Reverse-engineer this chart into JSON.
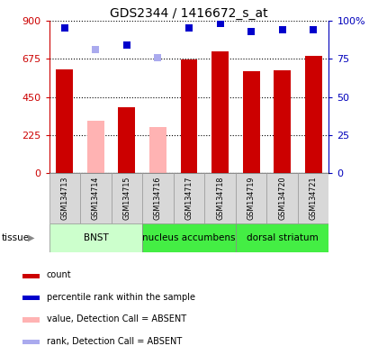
{
  "title": "GDS2344 / 1416672_s_at",
  "samples": [
    "GSM134713",
    "GSM134714",
    "GSM134715",
    "GSM134716",
    "GSM134717",
    "GSM134718",
    "GSM134719",
    "GSM134720",
    "GSM134721"
  ],
  "bar_values": [
    610,
    310,
    390,
    270,
    670,
    720,
    600,
    605,
    690
  ],
  "bar_colors": [
    "#cc0000",
    "#ffb3b3",
    "#cc0000",
    "#ffb3b3",
    "#cc0000",
    "#cc0000",
    "#cc0000",
    "#cc0000",
    "#cc0000"
  ],
  "rank_values": [
    95,
    81,
    84,
    76,
    95,
    98,
    93,
    94,
    94
  ],
  "rank_colors": [
    "#0000cc",
    "#aaaaee",
    "#0000cc",
    "#aaaaee",
    "#0000cc",
    "#0000cc",
    "#0000cc",
    "#0000cc",
    "#0000cc"
  ],
  "ylim_left": [
    0,
    900
  ],
  "ylim_right": [
    0,
    100
  ],
  "yticks_left": [
    0,
    225,
    450,
    675,
    900
  ],
  "yticks_right": [
    0,
    25,
    50,
    75,
    100
  ],
  "ytick_labels_left": [
    "0",
    "225",
    "450",
    "675",
    "900"
  ],
  "ytick_labels_right": [
    "0",
    "25",
    "50",
    "75",
    "100%"
  ],
  "tissue_groups": [
    {
      "label": "BNST",
      "start": 0,
      "end": 3,
      "color": "#ccffcc"
    },
    {
      "label": "nucleus accumbens",
      "start": 3,
      "end": 6,
      "color": "#44ee44"
    },
    {
      "label": "dorsal striatum",
      "start": 6,
      "end": 9,
      "color": "#44ee44"
    }
  ],
  "legend_items": [
    {
      "label": "count",
      "color": "#cc0000"
    },
    {
      "label": "percentile rank within the sample",
      "color": "#0000cc"
    },
    {
      "label": "value, Detection Call = ABSENT",
      "color": "#ffb3b3"
    },
    {
      "label": "rank, Detection Call = ABSENT",
      "color": "#aaaaee"
    }
  ],
  "bar_width": 0.55,
  "left_axis_color": "#cc0000",
  "right_axis_color": "#0000bb",
  "marker_size": 6,
  "title_fontsize": 10
}
